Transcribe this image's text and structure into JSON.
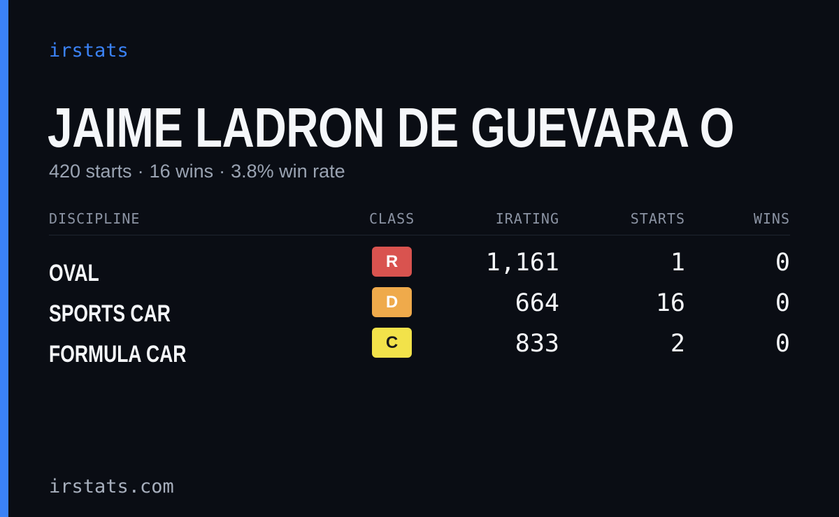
{
  "brand": "irstats",
  "driver": {
    "name": "JAIME LADRON DE GUEVARA O"
  },
  "summary": {
    "starts": "420 starts",
    "wins": "16 wins",
    "win_rate": "3.8% win rate",
    "separator": "·"
  },
  "table": {
    "headers": {
      "discipline": "DISCIPLINE",
      "class": "CLASS",
      "irating": "IRATING",
      "starts": "STARTS",
      "wins": "WINS"
    },
    "rows": [
      {
        "discipline": "OVAL",
        "class": "R",
        "class_color": "#d9534f",
        "class_text_color": "#ffffff",
        "irating": "1,161",
        "starts": "1",
        "wins": "0"
      },
      {
        "discipline": "SPORTS CAR",
        "class": "D",
        "class_color": "#efaa4b",
        "class_text_color": "#ffffff",
        "irating": "664",
        "starts": "16",
        "wins": "0"
      },
      {
        "discipline": "FORMULA CAR",
        "class": "C",
        "class_color": "#f2e24a",
        "class_text_color": "#1a1a1a",
        "irating": "833",
        "starts": "2",
        "wins": "0"
      }
    ]
  },
  "footer": {
    "url": "irstats.com"
  },
  "colors": {
    "background": "#0a0d14",
    "accent": "#3b82f6"
  }
}
